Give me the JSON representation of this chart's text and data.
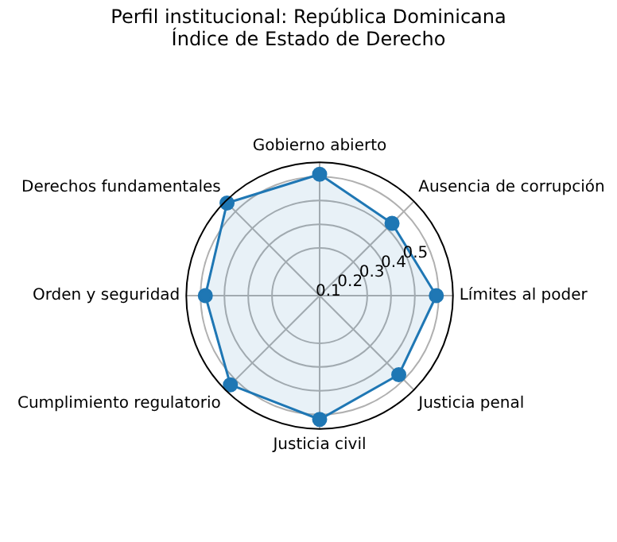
{
  "chart_data": {
    "type": "radar",
    "title": "Perfil institucional: República Dominicana",
    "subtitle": "Índice de Estado de Derecho",
    "categories": [
      "Gobierno abierto",
      "Ausencia de corrupción",
      "Límites al poder",
      "Justicia penal",
      "Justicia civil",
      "Cumplimiento regulatorio",
      "Orden y seguridad",
      "Derechos fundamentales"
    ],
    "series": [
      {
        "color": "#1f77b4",
        "values": [
          0.51,
          0.43,
          0.49,
          0.47,
          0.52,
          0.53,
          0.48,
          0.55
        ]
      }
    ],
    "ylim": [
      0,
      0.56
    ],
    "yticks": [
      0.1,
      0.2,
      0.3,
      0.4,
      0.5
    ],
    "grid": true,
    "marker": "circle",
    "legend": false
  }
}
